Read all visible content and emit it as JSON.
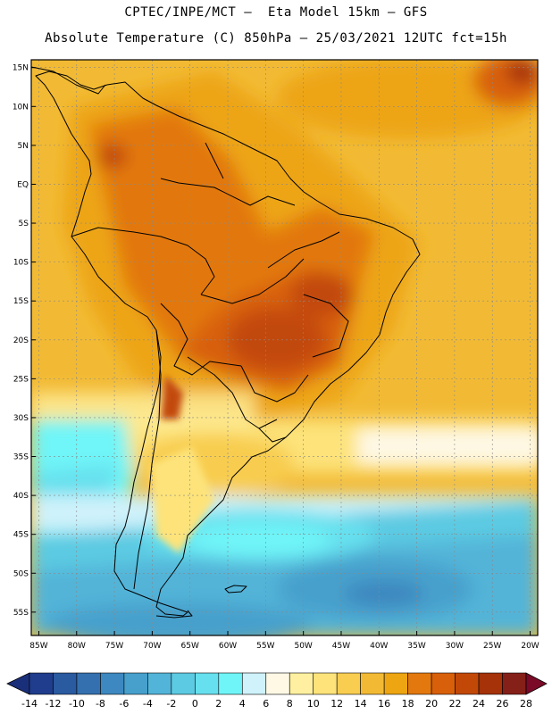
{
  "header": {
    "line1": "CPTEC/INPE/MCT –  Eta Model 15km – GFS",
    "line2": "Absolute Temperature (C) 850hPa – 25/03/2021 12UTC fct=15h"
  },
  "map": {
    "lon_range": [
      -86,
      -19
    ],
    "lat_range": [
      -58,
      16
    ],
    "lat_labels": [
      {
        "lat": 15,
        "text": "15N"
      },
      {
        "lat": 10,
        "text": "10N"
      },
      {
        "lat": 5,
        "text": "5N"
      },
      {
        "lat": 0,
        "text": "EQ"
      },
      {
        "lat": -5,
        "text": "5S"
      },
      {
        "lat": -10,
        "text": "10S"
      },
      {
        "lat": -15,
        "text": "15S"
      },
      {
        "lat": -20,
        "text": "20S"
      },
      {
        "lat": -25,
        "text": "25S"
      },
      {
        "lat": -30,
        "text": "30S"
      },
      {
        "lat": -35,
        "text": "35S"
      },
      {
        "lat": -40,
        "text": "40S"
      },
      {
        "lat": -45,
        "text": "45S"
      },
      {
        "lat": -50,
        "text": "50S"
      },
      {
        "lat": -55,
        "text": "55S"
      }
    ],
    "lon_labels": [
      {
        "lon": -85,
        "text": "85W"
      },
      {
        "lon": -80,
        "text": "80W"
      },
      {
        "lon": -75,
        "text": "75W"
      },
      {
        "lon": -70,
        "text": "70W"
      },
      {
        "lon": -65,
        "text": "65W"
      },
      {
        "lon": -60,
        "text": "60W"
      },
      {
        "lon": -55,
        "text": "55W"
      },
      {
        "lon": -50,
        "text": "50W"
      },
      {
        "lon": -45,
        "text": "45W"
      },
      {
        "lon": -40,
        "text": "40W"
      },
      {
        "lon": -35,
        "text": "35W"
      },
      {
        "lon": -30,
        "text": "30W"
      },
      {
        "lon": -25,
        "text": "25W"
      },
      {
        "lon": -20,
        "text": "20W"
      }
    ]
  },
  "colorbar": {
    "labels": [
      "-14",
      "-12",
      "-10",
      "-8",
      "-6",
      "-4",
      "-2",
      "0",
      "2",
      "4",
      "6",
      "8",
      "10",
      "12",
      "14",
      "16",
      "18",
      "20",
      "22",
      "24",
      "26",
      "28"
    ],
    "colors": [
      "#1f3d8c",
      "#2a5aa0",
      "#3470b0",
      "#3d88c0",
      "#47a0cc",
      "#52b4d8",
      "#5ccae2",
      "#66e0ee",
      "#6ff5f8",
      "#cff2fb",
      "#fef8e4",
      "#fef0a0",
      "#fde37a",
      "#f8cd50",
      "#f2ba34",
      "#eda512",
      "#e2780e",
      "#d8600a",
      "#c24808",
      "#a53208",
      "#852018"
    ],
    "under_color": "#1a2f7a",
    "over_color": "#7a0a28"
  }
}
